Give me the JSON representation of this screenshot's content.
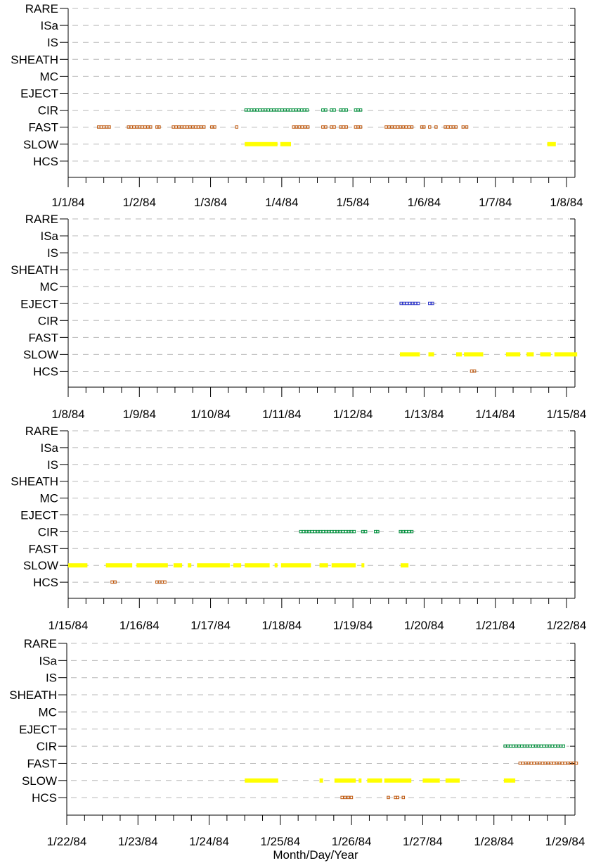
{
  "chart_data": [
    {
      "type": "scatter",
      "categories": [
        "RARE",
        "ISa",
        "IS",
        "SHEATH",
        "MC",
        "EJECT",
        "CIR",
        "FAST",
        "SLOW",
        "HCS"
      ],
      "x_ticks": [
        "1/1/84",
        "1/2/84",
        "1/3/84",
        "1/4/84",
        "1/5/84",
        "1/6/84",
        "1/7/84",
        "1/8/84"
      ],
      "xlim": [
        0,
        7.25
      ],
      "grid": true,
      "series": [
        {
          "category": "CIR",
          "segments": [
            [
              2.48,
              3.38
            ],
            [
              3.56,
              3.64
            ],
            [
              3.68,
              3.76
            ],
            [
              3.81,
              3.93
            ],
            [
              4.02,
              4.13
            ]
          ]
        },
        {
          "category": "FAST",
          "segments": [
            [
              0.41,
              0.6
            ],
            [
              0.83,
              1.18
            ],
            [
              1.23,
              1.3
            ],
            [
              1.46,
              1.93
            ],
            [
              2.0,
              2.08
            ],
            [
              2.35,
              2.38
            ],
            [
              3.15,
              3.39
            ],
            [
              3.56,
              3.64
            ],
            [
              3.68,
              3.76
            ],
            [
              3.81,
              3.93
            ],
            [
              4.02,
              4.13
            ],
            [
              4.45,
              4.85
            ],
            [
              4.95,
              5.02
            ],
            [
              5.06,
              5.08
            ],
            [
              5.15,
              5.19
            ],
            [
              5.28,
              5.47
            ],
            [
              5.53,
              5.62
            ]
          ]
        },
        {
          "category": "SLOW",
          "segments": [
            [
              2.48,
              2.94
            ],
            [
              2.98,
              3.13
            ],
            [
              6.73,
              6.85
            ]
          ]
        }
      ],
      "colors": {
        "CIR": "#008f3c",
        "FAST": "#c05a10",
        "SLOW": "#ffff00",
        "EJECT": "#2a33c9",
        "HCS": "#c05a10"
      }
    },
    {
      "type": "scatter",
      "categories": [
        "RARE",
        "ISa",
        "IS",
        "SHEATH",
        "MC",
        "EJECT",
        "CIR",
        "FAST",
        "SLOW",
        "HCS"
      ],
      "x_ticks": [
        "1/8/84",
        "1/9/84",
        "1/10/84",
        "1/11/84",
        "1/12/84",
        "1/13/84",
        "1/14/84",
        "1/15/84"
      ],
      "xlim": [
        0,
        7.15
      ],
      "grid": true,
      "series": [
        {
          "category": "EJECT",
          "segments": [
            [
              4.66,
              4.94
            ],
            [
              5.06,
              5.14
            ]
          ]
        },
        {
          "category": "SLOW",
          "segments": [
            [
              4.66,
              4.94
            ],
            [
              5.06,
              5.14
            ],
            [
              5.45,
              5.53
            ],
            [
              5.56,
              5.83
            ],
            [
              6.15,
              6.35
            ],
            [
              6.44,
              6.54
            ],
            [
              6.63,
              6.78
            ],
            [
              6.83,
              7.15
            ]
          ]
        },
        {
          "category": "HCS",
          "segments": [
            [
              5.65,
              5.73
            ]
          ]
        }
      ],
      "colors": {
        "CIR": "#008f3c",
        "FAST": "#c05a10",
        "SLOW": "#ffff00",
        "EJECT": "#2a33c9",
        "HCS": "#c05a10"
      }
    },
    {
      "type": "scatter",
      "categories": [
        "RARE",
        "ISa",
        "IS",
        "SHEATH",
        "MC",
        "EJECT",
        "CIR",
        "FAST",
        "SLOW",
        "HCS"
      ],
      "x_ticks": [
        "1/15/84",
        "1/16/84",
        "1/17/84",
        "1/18/84",
        "1/19/84",
        "1/20/84",
        "1/21/84",
        "1/22/84"
      ],
      "xlim": [
        0,
        7.15
      ],
      "grid": true,
      "series": [
        {
          "category": "CIR",
          "segments": [
            [
              3.25,
              4.04
            ],
            [
              4.12,
              4.2
            ],
            [
              4.3,
              4.37
            ],
            [
              4.65,
              4.85
            ]
          ]
        },
        {
          "category": "SLOW",
          "segments": [
            [
              0.0,
              0.27
            ],
            [
              0.53,
              0.9
            ],
            [
              0.96,
              1.4
            ],
            [
              1.48,
              1.6
            ],
            [
              1.68,
              1.73
            ],
            [
              1.81,
              2.27
            ],
            [
              2.32,
              2.43
            ],
            [
              2.48,
              2.83
            ],
            [
              2.9,
              2.94
            ],
            [
              2.99,
              3.41
            ],
            [
              3.53,
              3.65
            ],
            [
              3.7,
              4.04
            ],
            [
              4.12,
              4.16
            ],
            [
              4.67,
              4.78
            ]
          ]
        },
        {
          "category": "HCS",
          "segments": [
            [
              0.6,
              0.68
            ],
            [
              1.23,
              1.38
            ]
          ]
        }
      ],
      "colors": {
        "CIR": "#008f3c",
        "FAST": "#c05a10",
        "SLOW": "#ffff00",
        "EJECT": "#2a33c9",
        "HCS": "#c05a10"
      }
    },
    {
      "type": "scatter",
      "categories": [
        "RARE",
        "ISa",
        "IS",
        "SHEATH",
        "MC",
        "EJECT",
        "CIR",
        "FAST",
        "SLOW",
        "HCS"
      ],
      "x_ticks": [
        "1/22/84",
        "1/23/84",
        "1/24/84",
        "1/25/84",
        "1/26/84",
        "1/27/84",
        "1/28/84",
        "1/29/84"
      ],
      "xlabel": "Month/Day/Year",
      "xlim": [
        0,
        7.2
      ],
      "grid": true,
      "series": [
        {
          "category": "CIR",
          "segments": [
            [
              6.14,
              7.0
            ]
          ]
        },
        {
          "category": "FAST",
          "segments": [
            [
              6.35,
              7.18
            ]
          ]
        },
        {
          "category": "SLOW",
          "segments": [
            [
              2.5,
              2.97
            ],
            [
              3.55,
              3.6
            ],
            [
              3.76,
              4.06
            ],
            [
              4.1,
              4.14
            ],
            [
              4.22,
              4.43
            ],
            [
              4.46,
              4.84
            ],
            [
              5.0,
              5.24
            ],
            [
              5.32,
              5.52
            ],
            [
              6.14,
              6.3
            ]
          ]
        },
        {
          "category": "HCS",
          "segments": [
            [
              3.85,
              4.02
            ],
            [
              4.5,
              4.55
            ],
            [
              4.6,
              4.67
            ],
            [
              4.71,
              4.76
            ]
          ]
        }
      ],
      "colors": {
        "CIR": "#008f3c",
        "FAST": "#c05a10",
        "SLOW": "#ffff00",
        "EJECT": "#2a33c9",
        "HCS": "#c05a10"
      }
    }
  ]
}
